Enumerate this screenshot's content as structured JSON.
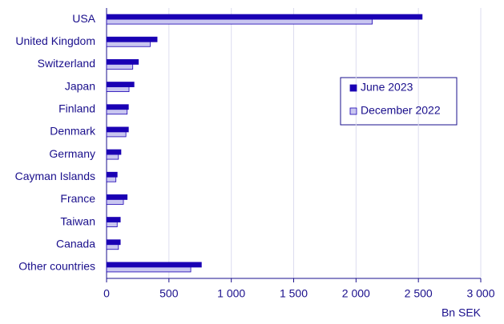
{
  "chart_data": {
    "type": "hbar",
    "categories": [
      "USA",
      "United Kingdom",
      "Switzerland",
      "Japan",
      "Finland",
      "Denmark",
      "Germany",
      "Cayman Islands",
      "France",
      "Taiwan",
      "Canada",
      "Other countries"
    ],
    "series": [
      {
        "name": "June 2023",
        "color": "#1a00b4",
        "values": [
          2530,
          405,
          255,
          220,
          175,
          175,
          115,
          85,
          165,
          110,
          110,
          760
        ]
      },
      {
        "name": "December 2022",
        "color": "#c9c6f0",
        "values": [
          2130,
          350,
          210,
          180,
          165,
          155,
          95,
          75,
          135,
          85,
          95,
          675
        ]
      }
    ],
    "xlim": [
      0,
      3000
    ],
    "xticks": [
      0,
      500,
      {
        "value": 1000,
        "label": "1 000"
      },
      {
        "value": 1500,
        "label": "1 500"
      },
      {
        "value": 2000,
        "label": "2 000"
      },
      {
        "value": 2500,
        "label": "2 500"
      },
      {
        "value": 3000,
        "label": "3 000"
      }
    ],
    "xlabel": "Bn SEK",
    "grid": true,
    "legend": "right"
  }
}
